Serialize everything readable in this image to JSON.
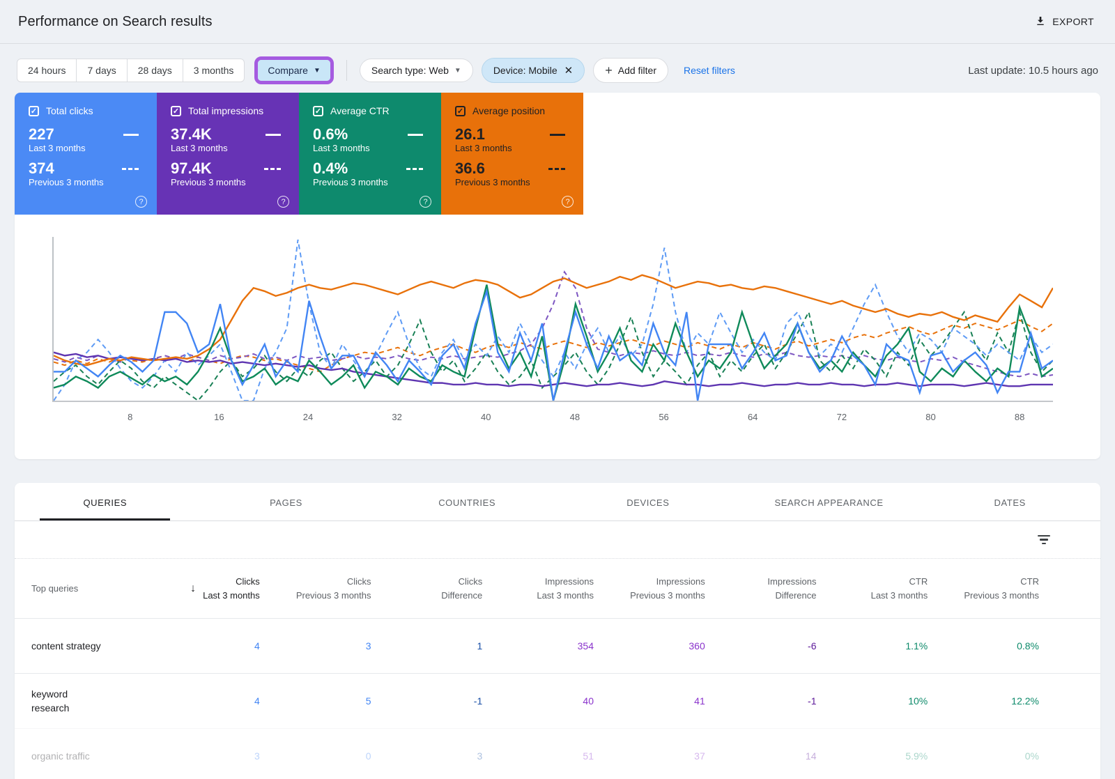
{
  "header": {
    "title": "Performance on Search results",
    "export_label": "EXPORT"
  },
  "filters": {
    "date_ranges": [
      "24 hours",
      "7 days",
      "28 days",
      "3 months"
    ],
    "compare_label": "Compare",
    "search_type": "Search type: Web",
    "device_chip": "Device: Mobile",
    "add_filter_label": "Add filter",
    "reset_label": "Reset filters",
    "last_update": "Last update: 10.5 hours ago",
    "annotation_color": "#a55be0"
  },
  "metric_cards": [
    {
      "label": "Total clicks",
      "value_last": "227",
      "caption_last": "Last 3 months",
      "value_prev": "374",
      "caption_prev": "Previous 3 months",
      "bg": "#4b8af5",
      "fg": "#ffffff"
    },
    {
      "label": "Total impressions",
      "value_last": "37.4K",
      "caption_last": "Last 3 months",
      "value_prev": "97.4K",
      "caption_prev": "Previous 3 months",
      "bg": "#6733b5",
      "fg": "#ffffff"
    },
    {
      "label": "Average CTR",
      "value_last": "0.6%",
      "caption_last": "Last 3 months",
      "value_prev": "0.4%",
      "caption_prev": "Previous 3 months",
      "bg": "#0e8a6d",
      "fg": "#ffffff"
    },
    {
      "label": "Average position",
      "value_last": "26.1",
      "caption_last": "Last 3 months",
      "value_prev": "36.6",
      "caption_prev": "Previous 3 months",
      "bg": "#e8710a",
      "fg": "#202124"
    }
  ],
  "chart": {
    "type": "line",
    "x_ticks": [
      8,
      16,
      24,
      32,
      40,
      48,
      56,
      64,
      72,
      80,
      88
    ],
    "x_range": [
      1,
      91
    ],
    "series": [
      {
        "name": "Average position - Previous 3 months",
        "color": "#e8710a",
        "dash": true,
        "values": [
          24,
          22,
          25,
          23,
          26,
          24,
          27,
          25,
          24,
          26,
          28,
          26,
          24,
          27,
          25,
          23,
          26,
          28,
          27,
          25,
          26,
          24,
          22,
          20,
          18,
          22,
          26,
          28,
          30,
          29,
          31,
          33,
          30,
          28,
          31,
          33,
          35,
          32,
          30,
          33,
          35,
          33,
          36,
          34,
          32,
          35,
          37,
          35,
          33,
          36,
          34,
          36,
          38,
          36,
          34,
          37,
          35,
          33,
          36,
          34,
          32,
          35,
          33,
          36,
          34,
          32,
          35,
          37,
          34,
          36,
          38,
          36,
          39,
          41,
          39,
          42,
          44,
          46,
          43,
          41,
          44,
          47,
          45,
          48,
          46,
          44,
          47,
          50,
          46,
          43,
          48
        ]
      },
      {
        "name": "Total impressions - Previous 3 months",
        "color": "#7e57c2",
        "dash": true,
        "values": [
          26,
          24,
          27,
          25,
          28,
          26,
          24,
          27,
          25,
          26,
          28,
          26,
          29,
          27,
          25,
          28,
          26,
          27,
          29,
          26,
          27,
          25,
          28,
          26,
          27,
          25,
          26,
          28,
          26,
          27,
          26,
          28,
          26,
          25,
          27,
          26,
          28,
          26,
          27,
          28,
          27,
          29,
          31,
          35,
          45,
          60,
          80,
          70,
          45,
          32,
          30,
          28,
          30,
          29,
          31,
          29,
          28,
          30,
          28,
          29,
          28,
          30,
          28,
          27,
          29,
          28,
          30,
          28,
          27,
          28,
          27,
          28,
          26,
          28,
          26,
          25,
          27,
          25,
          24,
          26,
          25,
          27,
          24,
          22,
          20,
          18,
          16,
          15,
          17,
          15,
          16
        ]
      },
      {
        "name": "Average CTR - Previous 3 months",
        "color": "#188055",
        "dash": true,
        "values": [
          12,
          18,
          22,
          15,
          10,
          18,
          25,
          20,
          12,
          8,
          15,
          10,
          5,
          0,
          8,
          18,
          25,
          15,
          20,
          28,
          18,
          12,
          20,
          15,
          25,
          30,
          20,
          12,
          18,
          25,
          15,
          22,
          35,
          50,
          30,
          18,
          25,
          12,
          20,
          30,
          18,
          10,
          15,
          25,
          8,
          15,
          22,
          30,
          18,
          10,
          20,
          35,
          52,
          30,
          15,
          25,
          18,
          10,
          22,
          30,
          15,
          25,
          18,
          28,
          35,
          20,
          30,
          42,
          55,
          25,
          18,
          28,
          20,
          32,
          25,
          15,
          30,
          22,
          38,
          28,
          35,
          45,
          55,
          35,
          25,
          42,
          30,
          55,
          30,
          18,
          25
        ]
      },
      {
        "name": "Total clicks - Previous 3 months",
        "color": "#5e9bf5",
        "dash": true,
        "values": [
          0,
          10,
          25,
          30,
          38,
          30,
          20,
          12,
          8,
          15,
          25,
          18,
          30,
          22,
          28,
          35,
          18,
          0,
          0,
          20,
          30,
          45,
          100,
          60,
          30,
          20,
          35,
          25,
          15,
          28,
          42,
          55,
          35,
          20,
          15,
          30,
          38,
          25,
          35,
          28,
          40,
          30,
          48,
          35,
          25,
          15,
          30,
          20,
          35,
          45,
          30,
          40,
          28,
          35,
          60,
          95,
          55,
          30,
          42,
          35,
          55,
          42,
          30,
          38,
          30,
          25,
          48,
          55,
          40,
          28,
          35,
          30,
          45,
          60,
          72,
          55,
          40,
          30,
          42,
          38,
          30,
          45,
          40,
          35,
          28,
          35,
          30,
          25,
          40,
          30,
          35
        ]
      },
      {
        "name": "Total impressions - Last 3 months",
        "color": "#5e35b1",
        "dash": false,
        "values": [
          30,
          28,
          29,
          27,
          28,
          26,
          27,
          26,
          25,
          26,
          25,
          26,
          24,
          25,
          24,
          25,
          23,
          24,
          23,
          22,
          23,
          22,
          21,
          22,
          20,
          19,
          20,
          18,
          17,
          16,
          15,
          14,
          13,
          12,
          11,
          11,
          10,
          10,
          11,
          10,
          10,
          9,
          10,
          10,
          9,
          10,
          11,
          10,
          9,
          10,
          10,
          11,
          10,
          9,
          10,
          12,
          11,
          10,
          10,
          9,
          10,
          10,
          11,
          10,
          9,
          10,
          10,
          11,
          10,
          10,
          11,
          10,
          10,
          9,
          10,
          10,
          11,
          10,
          9,
          10,
          10,
          10,
          9,
          10,
          11,
          10,
          9,
          9,
          10,
          10,
          10
        ]
      },
      {
        "name": "Average position - Last 3 months",
        "color": "#e8710a",
        "dash": false,
        "values": [
          28,
          25,
          23,
          22,
          24,
          26,
          25,
          27,
          26,
          25,
          26,
          27,
          26,
          28,
          32,
          38,
          50,
          62,
          70,
          68,
          65,
          67,
          70,
          72,
          70,
          69,
          71,
          73,
          72,
          70,
          68,
          66,
          69,
          72,
          74,
          72,
          70,
          73,
          75,
          74,
          72,
          68,
          64,
          66,
          70,
          74,
          76,
          73,
          70,
          72,
          74,
          77,
          75,
          78,
          76,
          73,
          70,
          72,
          74,
          73,
          71,
          72,
          70,
          69,
          71,
          70,
          68,
          66,
          64,
          62,
          60,
          62,
          59,
          57,
          55,
          57,
          54,
          52,
          54,
          53,
          55,
          52,
          50,
          53,
          51,
          49,
          58,
          66,
          62,
          58,
          70
        ]
      },
      {
        "name": "Average CTR - Last 3 months",
        "color": "#0f8a5a",
        "dash": false,
        "values": [
          8,
          10,
          15,
          12,
          8,
          15,
          18,
          14,
          10,
          16,
          12,
          15,
          10,
          18,
          30,
          45,
          25,
          12,
          15,
          20,
          10,
          15,
          12,
          25,
          18,
          10,
          15,
          22,
          8,
          18,
          15,
          10,
          20,
          15,
          12,
          22,
          18,
          15,
          45,
          72,
          35,
          20,
          30,
          15,
          40,
          0,
          25,
          60,
          40,
          18,
          30,
          45,
          25,
          18,
          35,
          25,
          48,
          30,
          15,
          25,
          20,
          30,
          55,
          35,
          20,
          28,
          35,
          48,
          30,
          20,
          25,
          18,
          30,
          22,
          15,
          28,
          35,
          45,
          18,
          12,
          20,
          15,
          25,
          18,
          12,
          20,
          15,
          58,
          40,
          15,
          20
        ]
      },
      {
        "name": "Total clicks - Last 3 months",
        "color": "#4285f4",
        "dash": false,
        "values": [
          18,
          18,
          25,
          20,
          15,
          22,
          28,
          24,
          18,
          25,
          55,
          55,
          48,
          30,
          35,
          60,
          25,
          10,
          22,
          35,
          15,
          25,
          18,
          62,
          40,
          20,
          28,
          28,
          15,
          30,
          22,
          12,
          25,
          18,
          10,
          28,
          35,
          20,
          48,
          68,
          30,
          18,
          42,
          25,
          48,
          0,
          30,
          55,
          35,
          20,
          40,
          25,
          30,
          22,
          48,
          30,
          22,
          55,
          0,
          35,
          35,
          35,
          20,
          30,
          42,
          25,
          28,
          48,
          30,
          18,
          25,
          40,
          28,
          22,
          10,
          35,
          28,
          25,
          5,
          28,
          30,
          18,
          25,
          30,
          22,
          5,
          18,
          18,
          42,
          20,
          25
        ]
      }
    ]
  },
  "tabs": [
    {
      "label": "QUERIES"
    },
    {
      "label": "PAGES"
    },
    {
      "label": "COUNTRIES"
    },
    {
      "label": "DEVICES"
    },
    {
      "label": "SEARCH APPEARANCE"
    },
    {
      "label": "DATES"
    }
  ],
  "table": {
    "row_header": "Top queries",
    "columns": [
      {
        "group": "Clicks",
        "period": "Last 3 months"
      },
      {
        "group": "Clicks",
        "period": "Previous 3 months"
      },
      {
        "group": "Clicks",
        "period": "Difference"
      },
      {
        "group": "Impressions",
        "period": "Last 3 months"
      },
      {
        "group": "Impressions",
        "period": "Previous 3 months"
      },
      {
        "group": "Impressions",
        "period": "Difference"
      },
      {
        "group": "CTR",
        "period": "Last 3 months"
      },
      {
        "group": "CTR",
        "period": "Previous 3 months"
      }
    ],
    "rows": [
      {
        "query": "content strategy",
        "values": [
          "4",
          "3",
          "1",
          "354",
          "360",
          "-6",
          "1.1%",
          "0.8%"
        ]
      },
      {
        "query": "keyword research",
        "values": [
          "4",
          "5",
          "-1",
          "40",
          "41",
          "-1",
          "10%",
          "12.2%"
        ]
      },
      {
        "query": "organic traffic",
        "values": [
          "3",
          "0",
          "3",
          "51",
          "37",
          "14",
          "5.9%",
          "0%"
        ]
      }
    ]
  }
}
